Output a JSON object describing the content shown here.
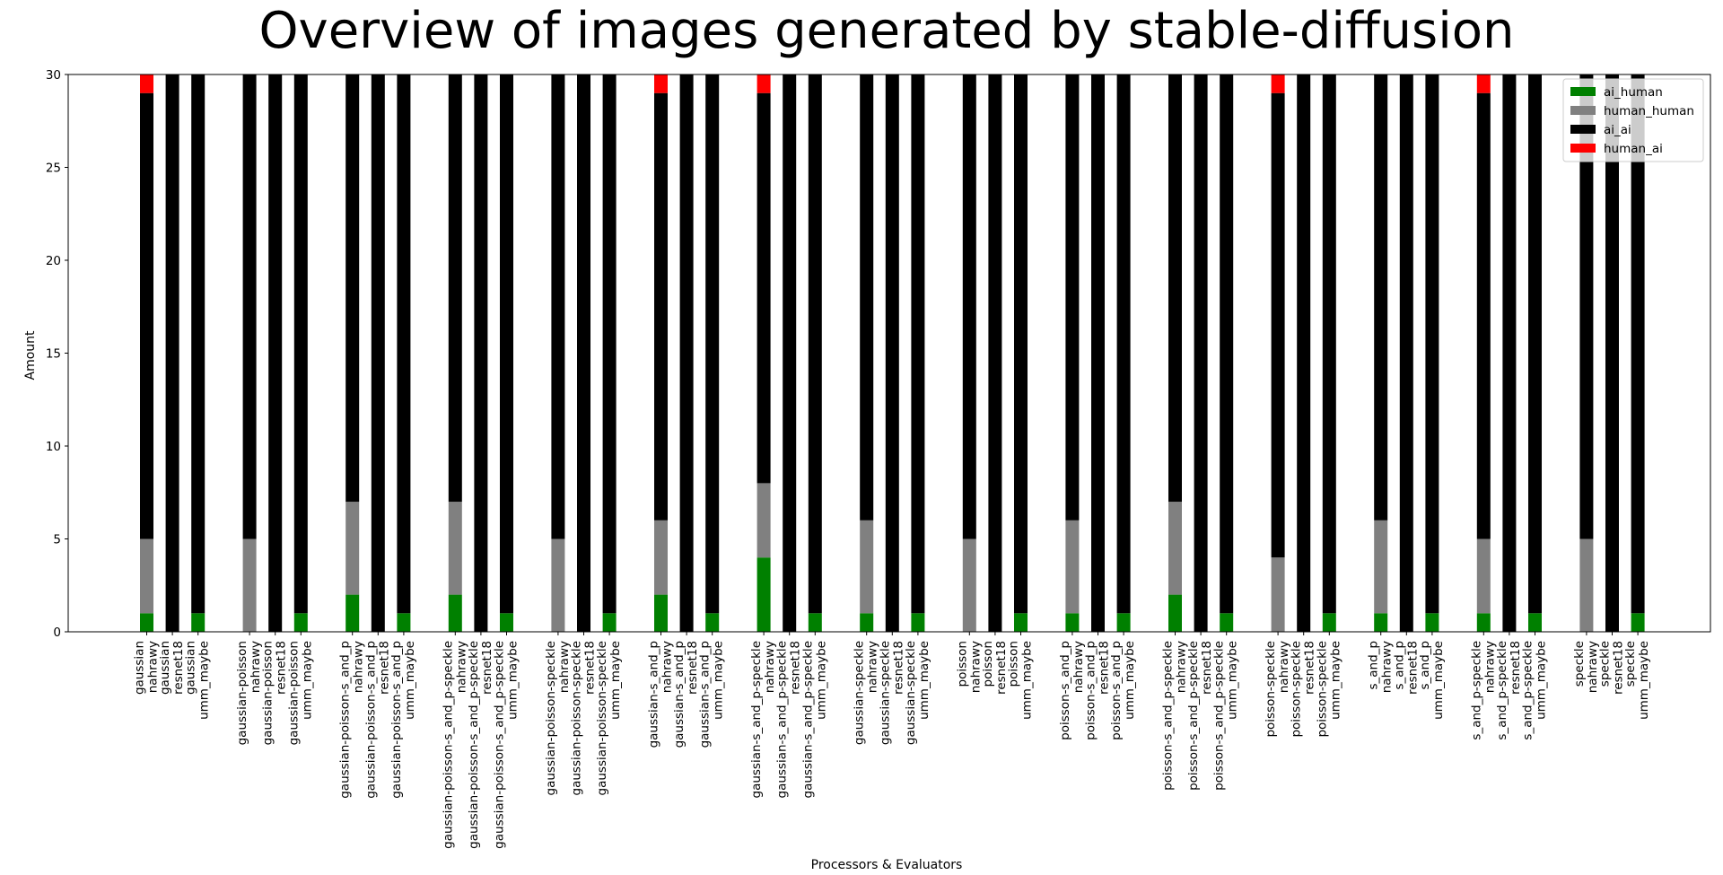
{
  "chart_data": {
    "type": "bar",
    "stacked": true,
    "title": "Overview of images generated by stable-diffusion",
    "xlabel": "Processors & Evaluators",
    "ylabel": "Amount",
    "ylim": [
      0,
      30
    ],
    "yticks": [
      0,
      5,
      10,
      15,
      20,
      25,
      30
    ],
    "grid": false,
    "legend_position": "top-right",
    "groups": [
      {
        "processor": "gaussian",
        "labels": [
          [
            "gaussian",
            "nahrawy"
          ],
          [
            "gaussian",
            "resnet18"
          ],
          [
            "gaussian",
            "umm_maybe"
          ]
        ],
        "ai_human": [
          1,
          0,
          1
        ],
        "human_human": [
          4,
          0,
          0
        ],
        "ai_ai": [
          24,
          30,
          29
        ],
        "human_ai": [
          1,
          0,
          0
        ]
      },
      {
        "processor": "gaussian-poisson",
        "labels": [
          [
            "gaussian-poisson",
            "nahrawy"
          ],
          [
            "gaussian-poisson",
            "resnet18"
          ],
          [
            "gaussian-poisson",
            "umm_maybe"
          ]
        ],
        "ai_human": [
          0,
          0,
          1
        ],
        "human_human": [
          5,
          0,
          0
        ],
        "ai_ai": [
          25,
          30,
          29
        ],
        "human_ai": [
          0,
          0,
          0
        ]
      },
      {
        "processor": "gaussian-poisson-s_and_p",
        "labels": [
          [
            "gaussian-poisson-s_and_p",
            "nahrawy"
          ],
          [
            "gaussian-poisson-s_and_p",
            "resnet18"
          ],
          [
            "gaussian-poisson-s_and_p",
            "umm_maybe"
          ]
        ],
        "ai_human": [
          2,
          0,
          1
        ],
        "human_human": [
          5,
          0,
          0
        ],
        "ai_ai": [
          23,
          30,
          29
        ],
        "human_ai": [
          0,
          0,
          0
        ]
      },
      {
        "processor": "gaussian-poisson-s_and_p-speckle",
        "labels": [
          [
            "gaussian-poisson-s_and_p-speckle",
            "nahrawy"
          ],
          [
            "gaussian-poisson-s_and_p-speckle",
            "resnet18"
          ],
          [
            "gaussian-poisson-s_and_p-speckle",
            "umm_maybe"
          ]
        ],
        "ai_human": [
          2,
          0,
          1
        ],
        "human_human": [
          5,
          0,
          0
        ],
        "ai_ai": [
          23,
          30,
          29
        ],
        "human_ai": [
          0,
          0,
          0
        ]
      },
      {
        "processor": "gaussian-poisson-speckle",
        "labels": [
          [
            "gaussian-poisson-speckle",
            "nahrawy"
          ],
          [
            "gaussian-poisson-speckle",
            "resnet18"
          ],
          [
            "gaussian-poisson-speckle",
            "umm_maybe"
          ]
        ],
        "ai_human": [
          0,
          0,
          1
        ],
        "human_human": [
          5,
          0,
          0
        ],
        "ai_ai": [
          25,
          30,
          29
        ],
        "human_ai": [
          0,
          0,
          0
        ]
      },
      {
        "processor": "gaussian-s_and_p",
        "labels": [
          [
            "gaussian-s_and_p",
            "nahrawy"
          ],
          [
            "gaussian-s_and_p",
            "resnet18"
          ],
          [
            "gaussian-s_and_p",
            "umm_maybe"
          ]
        ],
        "ai_human": [
          2,
          0,
          1
        ],
        "human_human": [
          4,
          0,
          0
        ],
        "ai_ai": [
          23,
          30,
          29
        ],
        "human_ai": [
          1,
          0,
          0
        ]
      },
      {
        "processor": "gaussian-s_and_p-speckle",
        "labels": [
          [
            "gaussian-s_and_p-speckle",
            "nahrawy"
          ],
          [
            "gaussian-s_and_p-speckle",
            "resnet18"
          ],
          [
            "gaussian-s_and_p-speckle",
            "umm_maybe"
          ]
        ],
        "ai_human": [
          4,
          0,
          1
        ],
        "human_human": [
          4,
          0,
          0
        ],
        "ai_ai": [
          21,
          30,
          29
        ],
        "human_ai": [
          1,
          0,
          0
        ]
      },
      {
        "processor": "gaussian-speckle",
        "labels": [
          [
            "gaussian-speckle",
            "nahrawy"
          ],
          [
            "gaussian-speckle",
            "resnet18"
          ],
          [
            "gaussian-speckle",
            "umm_maybe"
          ]
        ],
        "ai_human": [
          1,
          0,
          1
        ],
        "human_human": [
          5,
          0,
          0
        ],
        "ai_ai": [
          24,
          30,
          29
        ],
        "human_ai": [
          0,
          0,
          0
        ]
      },
      {
        "processor": "poisson",
        "labels": [
          [
            "poisson",
            "nahrawy"
          ],
          [
            "poisson",
            "resnet18"
          ],
          [
            "poisson",
            "umm_maybe"
          ]
        ],
        "ai_human": [
          0,
          0,
          1
        ],
        "human_human": [
          5,
          0,
          0
        ],
        "ai_ai": [
          25,
          30,
          29
        ],
        "human_ai": [
          0,
          0,
          0
        ]
      },
      {
        "processor": "poisson-s_and_p",
        "labels": [
          [
            "poisson-s_and_p",
            "nahrawy"
          ],
          [
            "poisson-s_and_p",
            "resnet18"
          ],
          [
            "poisson-s_and_p",
            "umm_maybe"
          ]
        ],
        "ai_human": [
          1,
          0,
          1
        ],
        "human_human": [
          5,
          0,
          0
        ],
        "ai_ai": [
          24,
          30,
          29
        ],
        "human_ai": [
          0,
          0,
          0
        ]
      },
      {
        "processor": "poisson-s_and_p-speckle",
        "labels": [
          [
            "poisson-s_and_p-speckle",
            "nahrawy"
          ],
          [
            "poisson-s_and_p-speckle",
            "resnet18"
          ],
          [
            "poisson-s_and_p-speckle",
            "umm_maybe"
          ]
        ],
        "ai_human": [
          2,
          0,
          1
        ],
        "human_human": [
          5,
          0,
          0
        ],
        "ai_ai": [
          23,
          30,
          29
        ],
        "human_ai": [
          0,
          0,
          0
        ]
      },
      {
        "processor": "poisson-speckle",
        "labels": [
          [
            "poisson-speckle",
            "nahrawy"
          ],
          [
            "poisson-speckle",
            "resnet18"
          ],
          [
            "poisson-speckle",
            "umm_maybe"
          ]
        ],
        "ai_human": [
          0,
          0,
          1
        ],
        "human_human": [
          4,
          0,
          0
        ],
        "ai_ai": [
          25,
          30,
          29
        ],
        "human_ai": [
          1,
          0,
          0
        ]
      },
      {
        "processor": "s_and_p",
        "labels": [
          [
            "s_and_p",
            "nahrawy"
          ],
          [
            "s_and_p",
            "resnet18"
          ],
          [
            "s_and_p",
            "umm_maybe"
          ]
        ],
        "ai_human": [
          1,
          0,
          1
        ],
        "human_human": [
          5,
          0,
          0
        ],
        "ai_ai": [
          24,
          30,
          29
        ],
        "human_ai": [
          0,
          0,
          0
        ]
      },
      {
        "processor": "s_and_p-speckle",
        "labels": [
          [
            "s_and_p-speckle",
            "nahrawy"
          ],
          [
            "s_and_p-speckle",
            "resnet18"
          ],
          [
            "s_and_p-speckle",
            "umm_maybe"
          ]
        ],
        "ai_human": [
          1,
          0,
          1
        ],
        "human_human": [
          4,
          0,
          0
        ],
        "ai_ai": [
          24,
          30,
          29
        ],
        "human_ai": [
          1,
          0,
          0
        ]
      },
      {
        "processor": "speckle",
        "labels": [
          [
            "speckle",
            "nahrawy"
          ],
          [
            "speckle",
            "resnet18"
          ],
          [
            "speckle",
            "umm_maybe"
          ]
        ],
        "ai_human": [
          0,
          0,
          1
        ],
        "human_human": [
          5,
          0,
          0
        ],
        "ai_ai": [
          25,
          30,
          29
        ],
        "human_ai": [
          0,
          0,
          0
        ]
      }
    ],
    "series": [
      {
        "key": "ai_human",
        "name": "ai_human",
        "color": "#008000"
      },
      {
        "key": "human_human",
        "name": "human_human",
        "color": "#808080"
      },
      {
        "key": "ai_ai",
        "name": "ai_ai",
        "color": "#000000"
      },
      {
        "key": "human_ai",
        "name": "human_ai",
        "color": "#ff0000"
      }
    ]
  }
}
